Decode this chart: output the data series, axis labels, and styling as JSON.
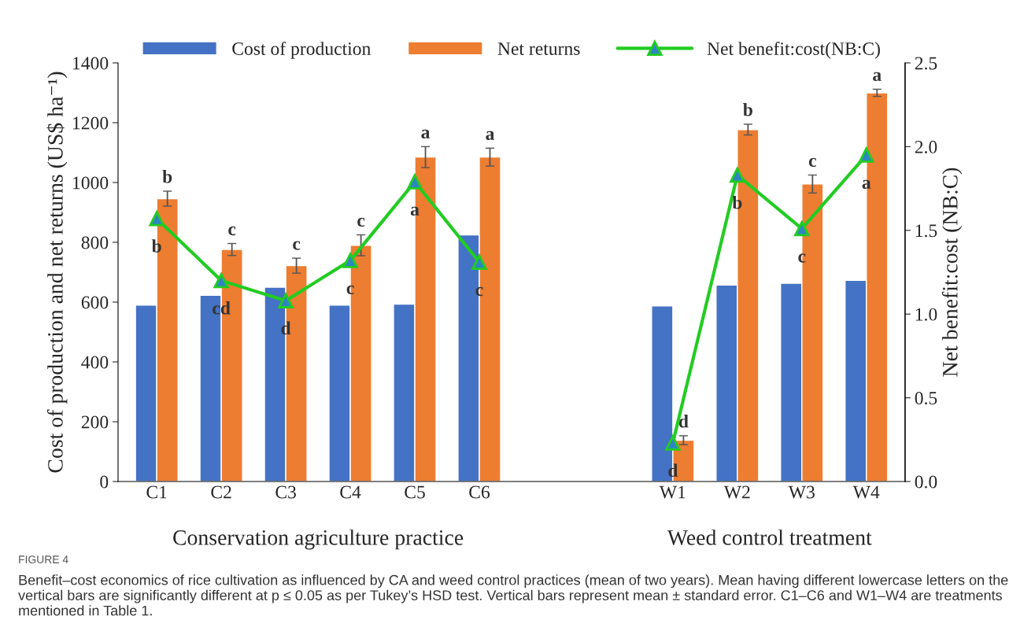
{
  "chart_data": {
    "type": "bar",
    "categories": [
      "C1",
      "C2",
      "C3",
      "C4",
      "C5",
      "C6",
      null,
      null,
      "W1",
      "W2",
      "W3",
      "W4"
    ],
    "xlabel": [
      "Conservation agriculture practice",
      "Weed control treatment"
    ],
    "ylabel": "Cost of production and net returns (US$ ha⁻¹)",
    "y2label": "Net benefit:cost (NB:C)",
    "series": [
      {
        "name": "Cost of production",
        "color": "#4472c4",
        "values": [
          590,
          623,
          650,
          590,
          593,
          825,
          null,
          null,
          587,
          657,
          663,
          673
        ]
      },
      {
        "name": "Net returns",
        "color": "#ed7d31",
        "values": [
          946,
          776,
          722,
          790,
          1085,
          1085,
          null,
          null,
          138,
          1177,
          995,
          1300
        ],
        "errors": [
          25,
          20,
          25,
          35,
          35,
          30,
          null,
          null,
          15,
          18,
          30,
          12
        ],
        "value_labels": [
          "b",
          "c",
          "c",
          "c",
          "a",
          "a",
          null,
          null,
          "d",
          "b",
          "c",
          "a"
        ]
      },
      {
        "name": "Net benefit:cost(NB:C)",
        "type": "line",
        "axis": "y2",
        "color": "#22cc22",
        "marker": "triangle",
        "values": [
          1.57,
          1.2,
          1.08,
          1.32,
          1.79,
          1.31,
          null,
          null,
          0.23,
          1.83,
          1.51,
          1.95
        ],
        "value_labels": [
          "b",
          "cd",
          "d",
          "c",
          "a",
          "c",
          null,
          null,
          "d",
          "b",
          "c",
          "a"
        ]
      }
    ],
    "ylim": [
      0,
      1400
    ],
    "yticks": [
      0,
      200,
      400,
      600,
      800,
      1000,
      1200,
      1400
    ],
    "y2lim": [
      0,
      2.5
    ],
    "y2ticks": [
      {
        "value": 0,
        "label": "0.0"
      },
      {
        "value": 0.5,
        "label": "0.5"
      },
      {
        "value": 1,
        "label": "1.0"
      },
      {
        "value": 1.5,
        "label": "1.5"
      },
      {
        "value": 2,
        "label": "2.0"
      },
      {
        "value": 2.5,
        "label": "2.5"
      }
    ],
    "legend": "top",
    "grid": false,
    "annotations": [
      "FIGURE 4",
      "Benefit–cost economics of rice cultivation as influenced by CA and weed control practices (mean of two years). Mean having different lowercase letters on the vertical bars are significantly different at p ≤ 0.05 as per Tukey’s HSD test. Vertical bars represent mean ± standard error. C1–C6 and W1–W4 are treatments mentioned in Table 1."
    ]
  }
}
